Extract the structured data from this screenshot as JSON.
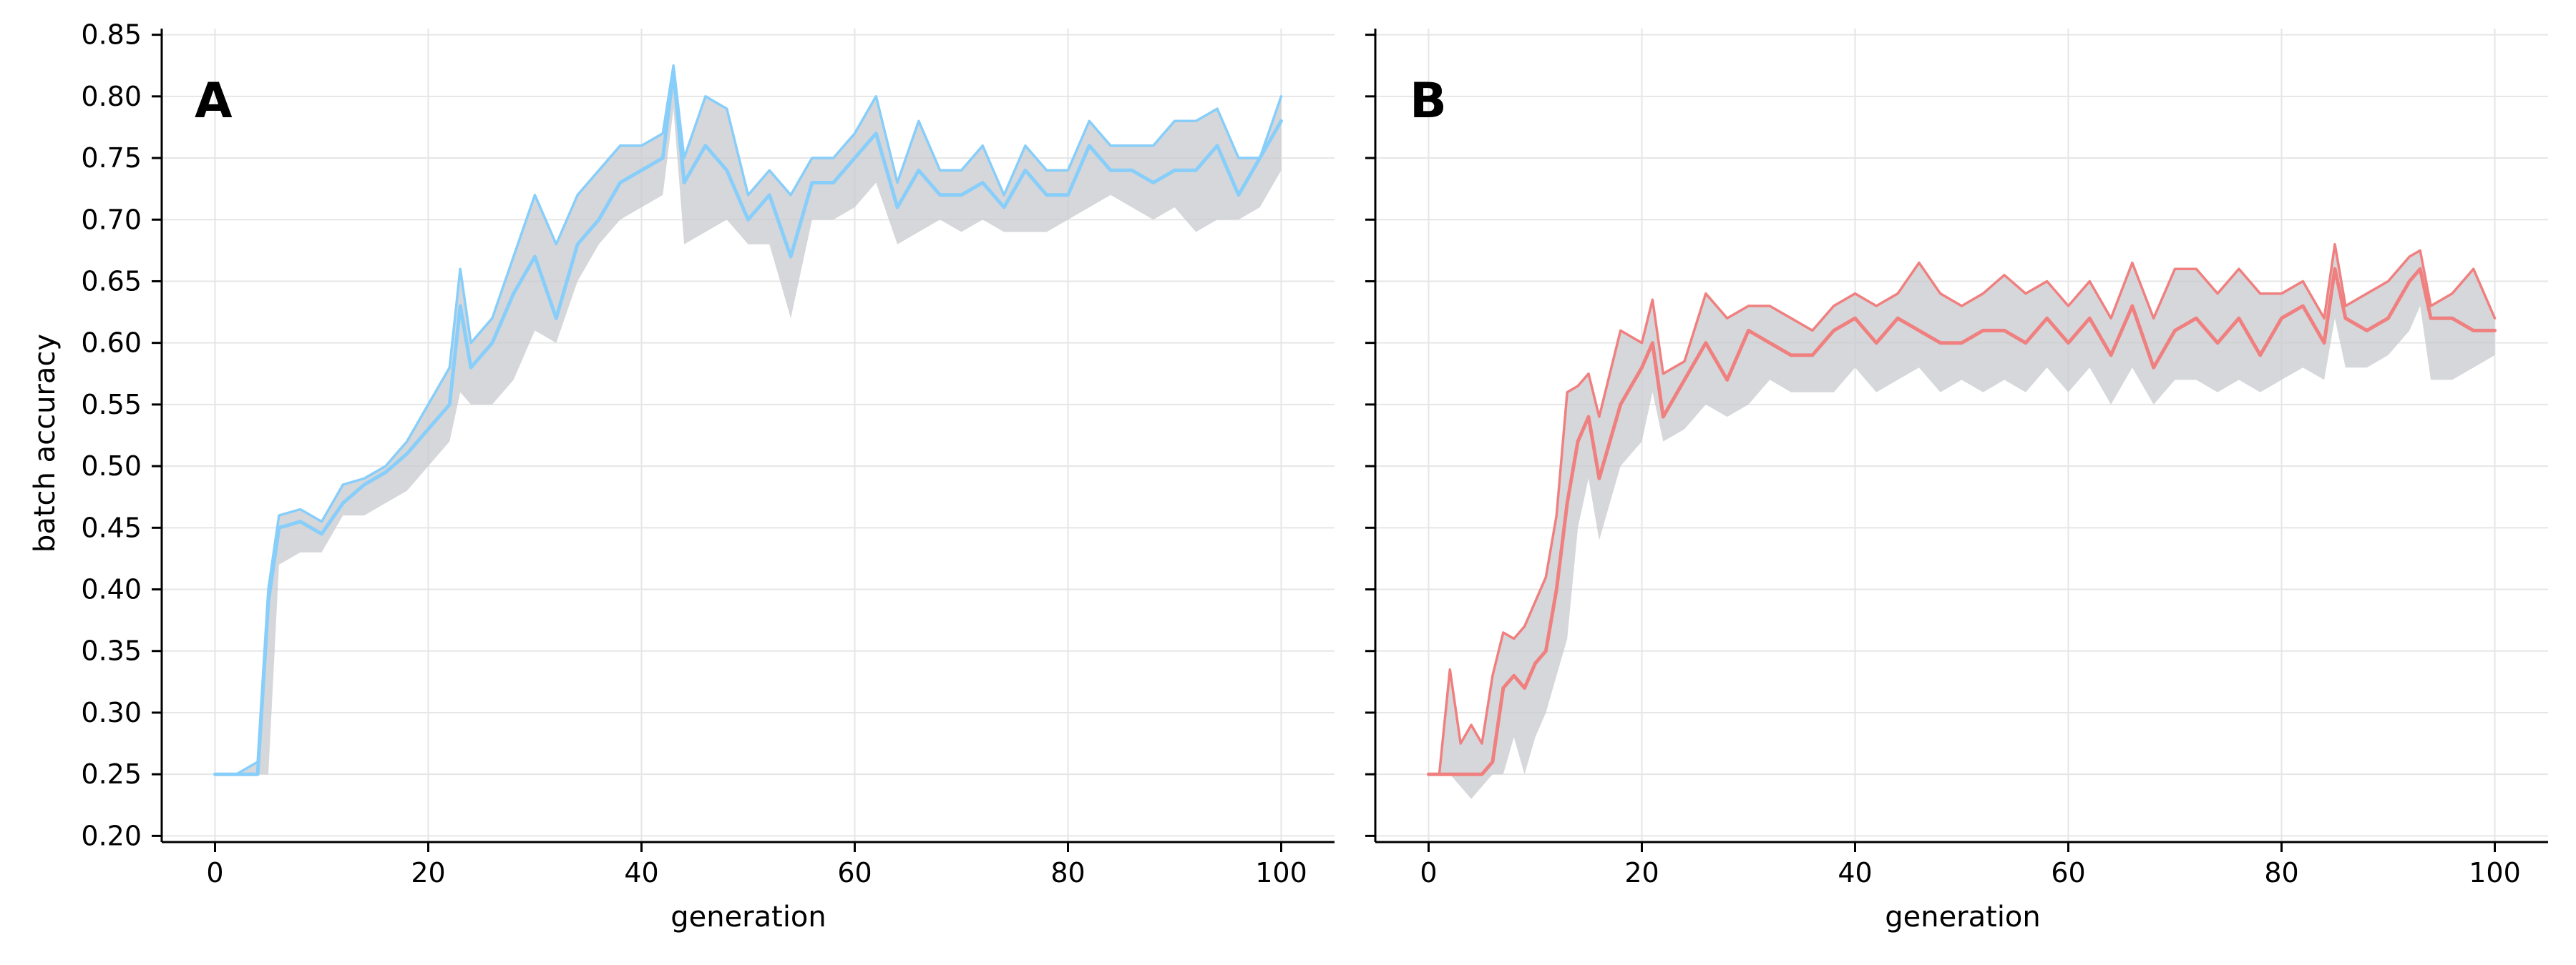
{
  "chart_data": [
    {
      "type": "line",
      "panel_label": "A",
      "xlabel": "generation",
      "ylabel": "batch accuracy",
      "xlim": [
        -5,
        105
      ],
      "ylim": [
        0.195,
        0.855
      ],
      "xticks": [
        0,
        20,
        40,
        60,
        80,
        100
      ],
      "yticks": [
        0.2,
        0.25,
        0.3,
        0.35,
        0.4,
        0.45,
        0.5,
        0.55,
        0.6,
        0.65,
        0.7,
        0.75,
        0.8,
        0.85
      ],
      "grid": true,
      "legend": "none",
      "line_color": "#87CEFA",
      "band_color": "#C8CACE",
      "x": [
        0,
        2,
        4,
        5,
        6,
        8,
        10,
        12,
        14,
        16,
        18,
        20,
        22,
        23,
        24,
        26,
        28,
        30,
        32,
        34,
        36,
        38,
        40,
        42,
        43,
        44,
        46,
        48,
        50,
        52,
        54,
        56,
        58,
        60,
        62,
        64,
        66,
        68,
        70,
        72,
        74,
        76,
        78,
        80,
        82,
        84,
        86,
        88,
        90,
        92,
        94,
        96,
        98,
        100
      ],
      "series": [
        {
          "values": [
            0.25,
            0.25,
            0.25,
            0.39,
            0.45,
            0.455,
            0.445,
            0.47,
            0.485,
            0.495,
            0.51,
            0.53,
            0.55,
            0.63,
            0.58,
            0.6,
            0.64,
            0.67,
            0.62,
            0.68,
            0.7,
            0.73,
            0.74,
            0.75,
            0.82,
            0.73,
            0.76,
            0.74,
            0.7,
            0.72,
            0.67,
            0.73,
            0.73,
            0.75,
            0.77,
            0.71,
            0.74,
            0.72,
            0.72,
            0.73,
            0.71,
            0.74,
            0.72,
            0.72,
            0.76,
            0.74,
            0.74,
            0.73,
            0.74,
            0.74,
            0.76,
            0.72,
            0.75,
            0.78
          ]
        },
        {
          "values": [
            0.25,
            0.25,
            0.26,
            0.4,
            0.46,
            0.465,
            0.455,
            0.485,
            0.49,
            0.5,
            0.52,
            0.55,
            0.58,
            0.66,
            0.6,
            0.62,
            0.67,
            0.72,
            0.68,
            0.72,
            0.74,
            0.76,
            0.76,
            0.77,
            0.825,
            0.75,
            0.8,
            0.79,
            0.72,
            0.74,
            0.72,
            0.75,
            0.75,
            0.77,
            0.8,
            0.73,
            0.78,
            0.74,
            0.74,
            0.76,
            0.72,
            0.76,
            0.74,
            0.74,
            0.78,
            0.76,
            0.76,
            0.76,
            0.78,
            0.78,
            0.79,
            0.75,
            0.75,
            0.8
          ]
        }
      ],
      "band_low": [
        0.25,
        0.25,
        0.25,
        0.25,
        0.42,
        0.43,
        0.43,
        0.46,
        0.46,
        0.47,
        0.48,
        0.5,
        0.52,
        0.56,
        0.55,
        0.55,
        0.57,
        0.61,
        0.6,
        0.65,
        0.68,
        0.7,
        0.71,
        0.72,
        0.79,
        0.68,
        0.69,
        0.7,
        0.68,
        0.68,
        0.62,
        0.7,
        0.7,
        0.71,
        0.73,
        0.68,
        0.69,
        0.7,
        0.69,
        0.7,
        0.69,
        0.69,
        0.69,
        0.7,
        0.71,
        0.72,
        0.71,
        0.7,
        0.71,
        0.69,
        0.7,
        0.7,
        0.71,
        0.74
      ]
    },
    {
      "type": "line",
      "panel_label": "B",
      "xlabel": "generation",
      "ylabel": "",
      "xlim": [
        -5,
        105
      ],
      "ylim": [
        0.195,
        0.855
      ],
      "xticks": [
        0,
        20,
        40,
        60,
        80,
        100
      ],
      "yticks": [
        0.2,
        0.25,
        0.3,
        0.35,
        0.4,
        0.45,
        0.5,
        0.55,
        0.6,
        0.65,
        0.7,
        0.75,
        0.8,
        0.85
      ],
      "grid": true,
      "legend": "none",
      "line_color": "#F08080",
      "band_color": "#C8CACE",
      "x": [
        0,
        1,
        2,
        3,
        4,
        5,
        6,
        7,
        8,
        9,
        10,
        11,
        12,
        13,
        14,
        15,
        16,
        18,
        20,
        21,
        22,
        24,
        26,
        28,
        30,
        32,
        34,
        36,
        38,
        40,
        42,
        44,
        46,
        48,
        50,
        52,
        54,
        56,
        58,
        60,
        62,
        64,
        66,
        68,
        70,
        72,
        74,
        76,
        78,
        80,
        82,
        84,
        85,
        86,
        88,
        90,
        92,
        93,
        94,
        96,
        98,
        100
      ],
      "series": [
        {
          "values": [
            0.25,
            0.25,
            0.25,
            0.25,
            0.25,
            0.25,
            0.26,
            0.32,
            0.33,
            0.32,
            0.34,
            0.35,
            0.4,
            0.47,
            0.52,
            0.54,
            0.49,
            0.55,
            0.58,
            0.6,
            0.54,
            0.57,
            0.6,
            0.57,
            0.61,
            0.6,
            0.59,
            0.59,
            0.61,
            0.62,
            0.6,
            0.62,
            0.61,
            0.6,
            0.6,
            0.61,
            0.61,
            0.6,
            0.62,
            0.6,
            0.62,
            0.59,
            0.63,
            0.58,
            0.61,
            0.62,
            0.6,
            0.62,
            0.59,
            0.62,
            0.63,
            0.6,
            0.66,
            0.62,
            0.61,
            0.62,
            0.65,
            0.66,
            0.62,
            0.62,
            0.61,
            0.61
          ]
        },
        {
          "values": [
            0.25,
            0.25,
            0.335,
            0.275,
            0.29,
            0.275,
            0.33,
            0.365,
            0.36,
            0.37,
            0.39,
            0.41,
            0.46,
            0.56,
            0.565,
            0.575,
            0.54,
            0.61,
            0.6,
            0.635,
            0.575,
            0.585,
            0.64,
            0.62,
            0.63,
            0.63,
            0.62,
            0.61,
            0.63,
            0.64,
            0.63,
            0.64,
            0.665,
            0.64,
            0.63,
            0.64,
            0.655,
            0.64,
            0.65,
            0.63,
            0.65,
            0.62,
            0.665,
            0.62,
            0.66,
            0.66,
            0.64,
            0.66,
            0.64,
            0.64,
            0.65,
            0.62,
            0.68,
            0.63,
            0.64,
            0.65,
            0.67,
            0.675,
            0.63,
            0.64,
            0.66,
            0.62
          ]
        }
      ],
      "band_low": [
        0.25,
        0.25,
        0.25,
        0.24,
        0.23,
        0.24,
        0.25,
        0.25,
        0.28,
        0.25,
        0.28,
        0.3,
        0.33,
        0.36,
        0.45,
        0.49,
        0.44,
        0.5,
        0.52,
        0.56,
        0.52,
        0.53,
        0.55,
        0.54,
        0.55,
        0.57,
        0.56,
        0.56,
        0.56,
        0.58,
        0.56,
        0.57,
        0.58,
        0.56,
        0.57,
        0.56,
        0.57,
        0.56,
        0.58,
        0.56,
        0.58,
        0.55,
        0.58,
        0.55,
        0.57,
        0.57,
        0.56,
        0.57,
        0.56,
        0.57,
        0.58,
        0.57,
        0.62,
        0.58,
        0.58,
        0.59,
        0.61,
        0.63,
        0.57,
        0.57,
        0.58,
        0.59
      ]
    }
  ]
}
